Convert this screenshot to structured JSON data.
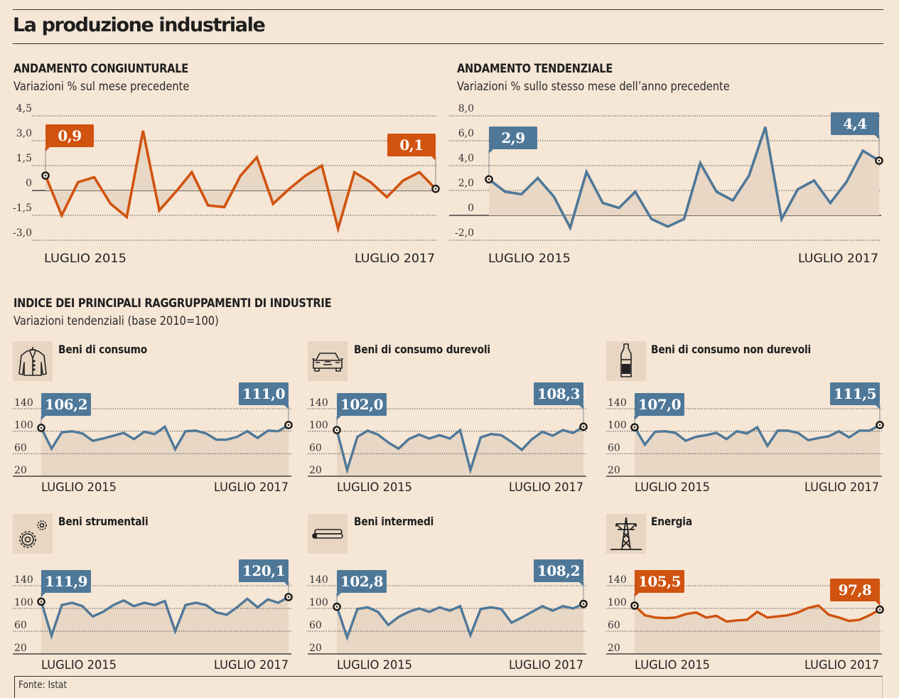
{
  "title": "La produzione industriale",
  "colors": {
    "orange": "#d0530f",
    "blue": "#4f7898",
    "background": "#f5e6d6",
    "area": "#e8d7c4"
  },
  "sections": {
    "congiunturale": {
      "title": "ANDAMENTO CONGIUNTURALE",
      "subtitle": "Variazioni % sul mese precedente"
    },
    "tendenziale": {
      "title": "ANDAMENTO TENDENZIALE",
      "subtitle": "Variazioni % sullo stesso mese dell’anno precedente"
    },
    "raggruppamenti": {
      "title": "INDICE DEI PRINCIPALI RAGGRUPPAMENTI DI INDUSTRIE",
      "subtitle": "Variazioni tendenziali (base 2010=100)"
    }
  },
  "source": "Fonte: Istat",
  "chart_data": [
    {
      "id": "congiunturale",
      "type": "line",
      "title": "ANDAMENTO CONGIUNTURALE",
      "subtitle": "Variazioni % sul mese precedente",
      "color": "orange",
      "x_start_label": "LUGLIO 2015",
      "x_end_label": "LUGLIO 2017",
      "yticks": [
        "4,5",
        "3,0",
        "1,5",
        "0",
        "-1,5",
        "-3,0"
      ],
      "ytick_values": [
        4.5,
        3.0,
        1.5,
        0,
        -1.5,
        -3.0
      ],
      "ylim": [
        -3.0,
        4.5
      ],
      "grid": true,
      "start_label": "0,9",
      "end_label": "0,1",
      "values": [
        0.9,
        -1.5,
        0.5,
        0.8,
        -0.8,
        -1.6,
        3.6,
        -1.2,
        -0.1,
        1.1,
        -0.9,
        -1.0,
        0.9,
        2.0,
        -0.8,
        0.1,
        0.9,
        1.5,
        -2.3,
        1.1,
        0.5,
        -0.4,
        0.6,
        1.1,
        0.1
      ]
    },
    {
      "id": "tendenziale",
      "type": "line",
      "title": "ANDAMENTO TENDENZIALE",
      "subtitle": "Variazioni % sullo stesso mese dell’anno precedente",
      "color": "blue",
      "x_start_label": "LUGLIO 2015",
      "x_end_label": "LUGLIO 2017",
      "yticks": [
        "8,0",
        "6,0",
        "4,0",
        "2,0",
        "0",
        "-2,0"
      ],
      "ytick_values": [
        8,
        6,
        4,
        2,
        0,
        -2
      ],
      "ylim": [
        -2.0,
        8.0
      ],
      "grid": true,
      "start_label": "2,9",
      "end_label": "4,4",
      "values": [
        2.9,
        1.9,
        1.7,
        3.0,
        1.5,
        -1.0,
        3.5,
        1.0,
        0.6,
        1.9,
        -0.3,
        -0.9,
        -0.3,
        4.2,
        1.9,
        1.2,
        3.2,
        7.1,
        -0.3,
        2.1,
        2.8,
        1.0,
        2.7,
        5.2,
        4.4
      ]
    },
    {
      "id": "beni-di-consumo",
      "type": "line",
      "title": "Beni di consumo",
      "icon": "jacket-icon",
      "color": "blue",
      "x_start_label": "LUGLIO 2015",
      "x_end_label": "LUGLIO 2017",
      "yticks": [
        "140",
        "100",
        "60",
        "20"
      ],
      "ylim": [
        20,
        140
      ],
      "start_label": "106,2",
      "end_label": "111,0",
      "values": [
        106,
        69,
        98,
        100,
        96,
        83,
        87,
        92,
        97,
        86,
        99,
        95,
        108,
        68,
        100,
        101,
        96,
        85,
        85,
        90,
        100,
        88,
        101,
        100,
        111
      ]
    },
    {
      "id": "beni-di-consumo-durevoli",
      "type": "line",
      "title": "Beni di consumo durevoli",
      "icon": "car-icon",
      "color": "blue",
      "x_start_label": "LUGLIO 2015",
      "x_end_label": "LUGLIO 2017",
      "yticks": [
        "140",
        "100",
        "60",
        "20"
      ],
      "ylim": [
        20,
        140
      ],
      "start_label": "102,0",
      "end_label": "108,3",
      "values": [
        102,
        31,
        90,
        101,
        94,
        80,
        69,
        86,
        94,
        87,
        93,
        87,
        102,
        31,
        89,
        95,
        93,
        81,
        67,
        86,
        99,
        92,
        102,
        97,
        108
      ]
    },
    {
      "id": "beni-di-consumo-non-durevoli",
      "type": "line",
      "title": "Beni di consumo non durevoli",
      "icon": "bottle-icon",
      "color": "blue",
      "x_start_label": "LUGLIO 2015",
      "x_end_label": "LUGLIO 2017",
      "yticks": [
        "140",
        "100",
        "60",
        "20"
      ],
      "ylim": [
        20,
        140
      ],
      "start_label": "107,0",
      "end_label": "111,5",
      "values": [
        107,
        76,
        99,
        100,
        97,
        83,
        90,
        93,
        97,
        86,
        100,
        96,
        107,
        74,
        101,
        101,
        97,
        84,
        88,
        91,
        100,
        89,
        101,
        101,
        111
      ]
    },
    {
      "id": "beni-strumentali",
      "type": "line",
      "title": "Beni strumentali",
      "icon": "gears-icon",
      "color": "blue",
      "x_start_label": "LUGLIO 2015",
      "x_end_label": "LUGLIO 2017",
      "yticks": [
        "140",
        "100",
        "60",
        "20"
      ],
      "ylim": [
        20,
        140
      ],
      "start_label": "111,9",
      "end_label": "120,1",
      "values": [
        112,
        52,
        106,
        110,
        104,
        86,
        94,
        106,
        114,
        104,
        110,
        106,
        113,
        60,
        106,
        110,
        106,
        93,
        89,
        102,
        117,
        102,
        116,
        110,
        120
      ]
    },
    {
      "id": "beni-intermedi",
      "type": "line",
      "title": "Beni intermedi",
      "icon": "pipes-icon",
      "color": "blue",
      "x_start_label": "LUGLIO 2015",
      "x_end_label": "LUGLIO 2017",
      "yticks": [
        "140",
        "100",
        "60",
        "20"
      ],
      "ylim": [
        20,
        140
      ],
      "start_label": "102,8",
      "end_label": "108,2",
      "values": [
        103,
        49,
        99,
        102,
        94,
        71,
        85,
        94,
        100,
        94,
        102,
        96,
        104,
        53,
        99,
        102,
        99,
        75,
        84,
        94,
        104,
        96,
        104,
        100,
        108
      ]
    },
    {
      "id": "energia",
      "type": "line",
      "title": "Energia",
      "icon": "power-pylon-icon",
      "color": "orange",
      "x_start_label": "LUGLIO 2015",
      "x_end_label": "LUGLIO 2017",
      "yticks": [
        "140",
        "100",
        "60",
        "20"
      ],
      "ylim": [
        20,
        140
      ],
      "start_label": "105,5",
      "end_label": "97,8",
      "values": [
        105,
        88,
        84,
        83,
        84,
        90,
        93,
        84,
        87,
        77,
        79,
        80,
        94,
        84,
        86,
        88,
        93,
        101,
        105,
        89,
        84,
        78,
        80,
        88,
        98
      ]
    }
  ]
}
